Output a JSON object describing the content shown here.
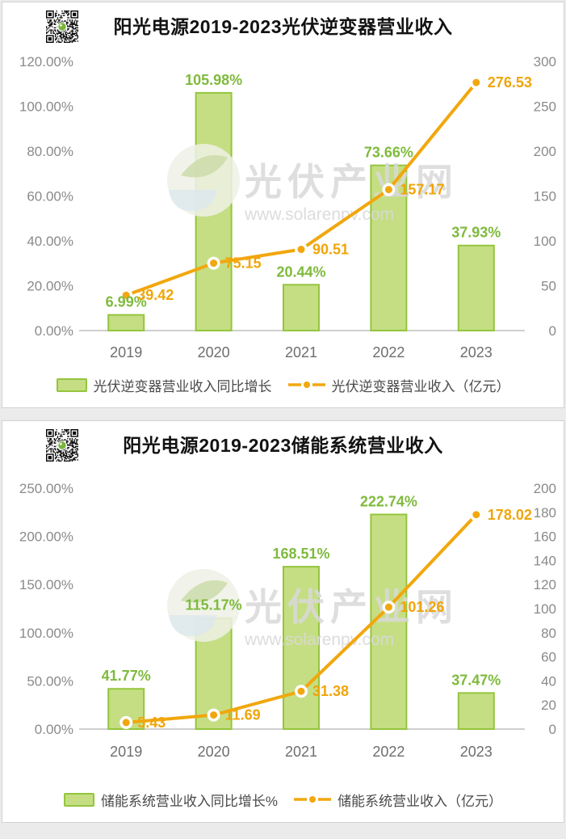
{
  "colors": {
    "bar_fill": "#c5de83",
    "bar_border": "#94c53d",
    "bar_label": "#7fba3d",
    "line": "#f1a70e",
    "line_label": "#f0a50a",
    "axis_text": "#8a8a8a",
    "category_text": "#6e6e6e",
    "axis_line": "#bfbfbf",
    "title": "#121212",
    "watermark": "#d9d9d9"
  },
  "chart_data": [
    {
      "type": "bar",
      "title": "阳光电源2019-2023光伏逆变器营业收入",
      "categories": [
        "2019",
        "2020",
        "2021",
        "2022",
        "2023"
      ],
      "series": [
        {
          "name": "光伏逆变器营业收入同比增长",
          "type": "bar",
          "axis": "left",
          "values": [
            6.99,
            105.98,
            20.44,
            73.66,
            37.93
          ],
          "labels": [
            "6.99%",
            "105.98%",
            "20.44%",
            "73.66%",
            "37.93%"
          ]
        },
        {
          "name": "光伏逆变器营业收入（亿元）",
          "type": "line",
          "axis": "right",
          "values": [
            39.42,
            75.15,
            90.51,
            157.17,
            276.53
          ],
          "labels": [
            "39.42",
            "75.15",
            "90.51",
            "157.17",
            "276.53"
          ]
        }
      ],
      "left_axis": {
        "min": 0,
        "max": 120,
        "ticks": [
          "0.00%",
          "20.00%",
          "40.00%",
          "60.00%",
          "80.00%",
          "100.00%",
          "120.00%"
        ]
      },
      "right_axis": {
        "min": 0,
        "max": 300,
        "ticks": [
          "0",
          "50",
          "100",
          "150",
          "200",
          "250",
          "300"
        ]
      },
      "grid": false,
      "legend_position": "bottom",
      "watermark": {
        "text": "光伏产业网",
        "url": "www.solarenpv.com"
      }
    },
    {
      "type": "bar",
      "title": "阳光电源2019-2023储能系统营业收入",
      "categories": [
        "2019",
        "2020",
        "2021",
        "2022",
        "2023"
      ],
      "series": [
        {
          "name": "储能系统营业收入同比增长%",
          "type": "bar",
          "axis": "left",
          "values": [
            41.77,
            115.17,
            168.51,
            222.74,
            37.47
          ],
          "labels": [
            "41.77%",
            "115.17%",
            "168.51%",
            "222.74%",
            "37.47%"
          ]
        },
        {
          "name": "储能系统营业收入（亿元）",
          "type": "line",
          "axis": "right",
          "values": [
            5.43,
            11.69,
            31.38,
            101.26,
            178.02
          ],
          "labels": [
            "5.43",
            "11.69",
            "31.38",
            "101.26",
            "178.02"
          ]
        }
      ],
      "left_axis": {
        "min": 0,
        "max": 250,
        "ticks": [
          "0.00%",
          "50.00%",
          "100.00%",
          "150.00%",
          "200.00%",
          "250.00%"
        ]
      },
      "right_axis": {
        "min": 0,
        "max": 200,
        "ticks": [
          "0",
          "20",
          "40",
          "60",
          "80",
          "100",
          "120",
          "140",
          "160",
          "180",
          "200"
        ]
      },
      "grid": false,
      "legend_position": "bottom",
      "watermark": {
        "text": "光伏产业网",
        "url": "www.solarenpv.com"
      }
    }
  ]
}
